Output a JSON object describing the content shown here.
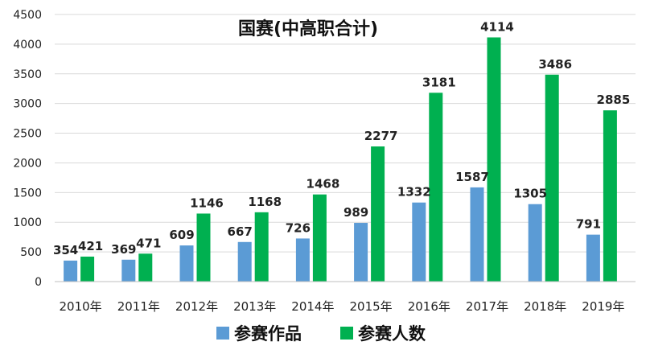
{
  "chart_data": {
    "type": "bar",
    "title": "国赛(中高职合计)",
    "categories": [
      "2010年",
      "2011年",
      "2012年",
      "2013年",
      "2014年",
      "2015年",
      "2016年",
      "2017年",
      "2018年",
      "2019年"
    ],
    "series": [
      {
        "name": "参赛作品",
        "color": "#5b9bd5",
        "values": [
          354,
          369,
          609,
          667,
          726,
          989,
          1332,
          1587,
          1305,
          791
        ]
      },
      {
        "name": "参赛人数",
        "color": "#00b050",
        "values": [
          421,
          471,
          1146,
          1168,
          1468,
          2277,
          3181,
          4114,
          3486,
          2885
        ]
      }
    ],
    "ylim": [
      0,
      4500
    ],
    "yticks": [
      0,
      500,
      1000,
      1500,
      2000,
      2500,
      3000,
      3500,
      4000,
      4500
    ],
    "grid": true,
    "legend": "bottom",
    "data_labels": true
  }
}
